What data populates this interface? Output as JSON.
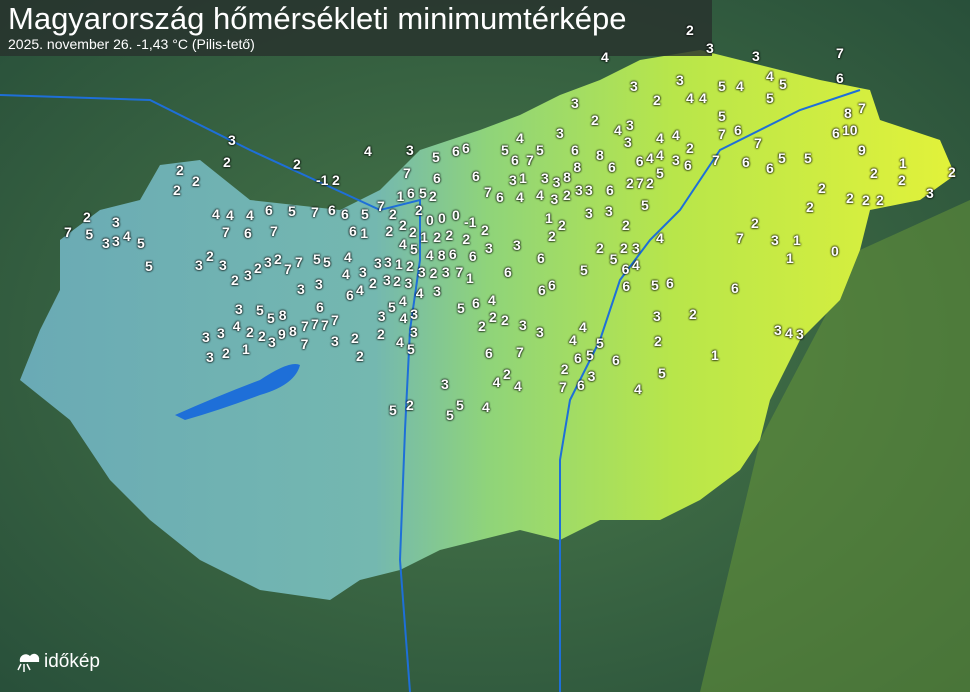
{
  "header": {
    "title": "Magyarország hőmérsékleti minimumtérképe",
    "subtitle": "2025. november 26.  -1,43 °C (Pilis-tető)"
  },
  "brand": {
    "logo": "időkép"
  },
  "colors": {
    "cold": "#5fa8b8",
    "mid": "#8ccf7a",
    "warm": "#d8ef3a",
    "lake": "#1e6fd8",
    "background": "#2d5a3f"
  },
  "stations": [
    "2",
    "3",
    "4",
    "3",
    "4",
    "5",
    "4",
    "5",
    "4",
    "5",
    "7",
    "6",
    "3",
    "2",
    "3",
    "3",
    "2",
    "3",
    "3",
    "4",
    "4",
    "4",
    "5",
    "6",
    "7",
    "3",
    "4",
    "5",
    "5",
    "6",
    "7",
    "6",
    "8",
    "8",
    "6",
    "8",
    "3",
    "3",
    "2",
    "2",
    "3",
    "2",
    "4",
    "4",
    "3",
    "4",
    "4",
    "6",
    "7",
    "5",
    "4",
    "6",
    "6",
    "5",
    "7",
    "6",
    "7",
    "6",
    "5",
    "5",
    "8",
    "7",
    "6",
    "10",
    "9",
    "2",
    "1",
    "2",
    "2",
    "2",
    "2",
    "2",
    "3",
    "2",
    "3",
    "2",
    "2",
    "-1",
    "2",
    "4",
    "3",
    "5",
    "6",
    "6",
    "7",
    "6",
    "5",
    "6",
    "6",
    "7",
    "6",
    "3",
    "1",
    "3",
    "2",
    "3",
    "3",
    "2",
    "1",
    "2",
    "2",
    "3",
    "2",
    "2",
    "3",
    "4",
    "4",
    "5",
    "6",
    "6",
    "6",
    "6",
    "6",
    "5",
    "6",
    "5",
    "6",
    "6",
    "7",
    "2",
    "3",
    "1",
    "2",
    "1",
    "0",
    "2",
    "2",
    "2",
    "4",
    "4",
    "4",
    "6",
    "5",
    "7",
    "6",
    "6",
    "5",
    "7",
    "2",
    "1",
    "2",
    "2",
    "0",
    "0",
    "0",
    "-1",
    "2",
    "2",
    "3",
    "3",
    "3",
    "4",
    "5",
    "5",
    "5",
    "7",
    "6",
    "7",
    "7",
    "6",
    "1",
    "2",
    "2",
    "2",
    "1",
    "2",
    "2",
    "2",
    "3",
    "3",
    "4",
    "5",
    "4",
    "8",
    "6",
    "6",
    "7",
    "1",
    "1",
    "2",
    "2",
    "3",
    "3",
    "3",
    "3",
    "2",
    "4",
    "3",
    "3",
    "3",
    "4",
    "4",
    "5",
    "5",
    "7",
    "7",
    "2",
    "3",
    "2",
    "3",
    "2",
    "3",
    "2",
    "3",
    "3",
    "3",
    "4",
    "2",
    "3",
    "4",
    "5",
    "6",
    "7",
    "6",
    "7",
    "7",
    "8",
    "9",
    "3",
    "2",
    "2",
    "1",
    "2",
    "3",
    "3",
    "3",
    "3",
    "4",
    "5",
    "5",
    "8",
    "7",
    "7",
    "3",
    "2",
    "2",
    "2",
    "3",
    "4",
    "3",
    "3",
    "4",
    "5",
    "5",
    "6",
    "4",
    "2",
    "2",
    "2",
    "3",
    "3",
    "4",
    "4",
    "5",
    "5",
    "6",
    "6",
    "7",
    "6",
    "2",
    "3",
    "2",
    "1",
    "3",
    "4",
    "3",
    "4",
    "5",
    "6",
    "7",
    "3",
    "2",
    "2",
    "4",
    "4",
    "4",
    "5",
    "5",
    "3",
    "2",
    "5"
  ]
}
